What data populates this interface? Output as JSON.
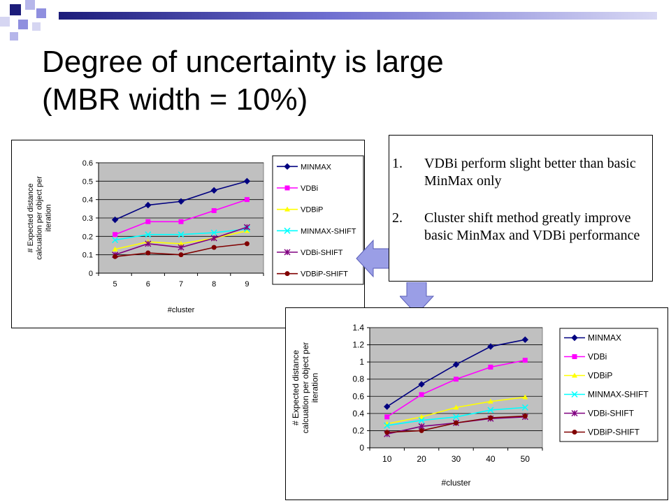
{
  "slide": {
    "title_line1": "Degree of uncertainty is large",
    "title_line2": "(MBR width = 10%)",
    "notes": [
      {
        "num": "1.",
        "text": "VDBi perform slight better than basic MinMax only"
      },
      {
        "num": "2.",
        "text": "Cluster shift method greatly improve basic MinMax and VDBi performance"
      }
    ]
  },
  "colors": {
    "accent_navy": "#1c1c7a",
    "accent_periwinkle": "#8f8fdf",
    "arrow_fill": "#9a9ee6"
  },
  "chart_data": [
    {
      "type": "line",
      "xlabel": "#cluster",
      "ylabel": "# Expected distance calcuation per object per iteration",
      "categories": [
        "5",
        "6",
        "7",
        "8",
        "9"
      ],
      "ylim": [
        0,
        0.6
      ],
      "yticks": [
        "0",
        "0.1",
        "0.2",
        "0.3",
        "0.4",
        "0.5",
        "0.6"
      ],
      "grid": true,
      "legend": "right",
      "series": [
        {
          "name": "MINMAX",
          "values": [
            0.29,
            0.37,
            0.39,
            0.45,
            0.5
          ],
          "color": "#000080",
          "marker": "diamond"
        },
        {
          "name": "VDBi",
          "values": [
            0.21,
            0.28,
            0.28,
            0.34,
            0.4
          ],
          "color": "#ff00ff",
          "marker": "square"
        },
        {
          "name": "VDBiP",
          "values": [
            0.13,
            0.17,
            0.16,
            0.19,
            0.23
          ],
          "color": "#ffff00",
          "marker": "triangle"
        },
        {
          "name": "MINMAX-SHIFT",
          "values": [
            0.18,
            0.21,
            0.21,
            0.22,
            0.24
          ],
          "color": "#00ffff",
          "marker": "x"
        },
        {
          "name": "VDBi-SHIFT",
          "values": [
            0.1,
            0.16,
            0.14,
            0.19,
            0.25
          ],
          "color": "#800080",
          "marker": "star"
        },
        {
          "name": "VDBiP-SHIFT",
          "values": [
            0.09,
            0.11,
            0.1,
            0.14,
            0.16
          ],
          "color": "#800000",
          "marker": "circle"
        }
      ]
    },
    {
      "type": "line",
      "xlabel": "#cluster",
      "ylabel": "# Expected distance calcuation per object per iteration",
      "categories": [
        "10",
        "20",
        "30",
        "40",
        "50"
      ],
      "ylim": [
        0,
        1.4
      ],
      "yticks": [
        "0",
        "0.2",
        "0.4",
        "0.6",
        "0.8",
        "1",
        "1.2",
        "1.4"
      ],
      "grid": true,
      "legend": "right",
      "series": [
        {
          "name": "MINMAX",
          "values": [
            0.48,
            0.74,
            0.97,
            1.18,
            1.26
          ],
          "color": "#000080",
          "marker": "diamond"
        },
        {
          "name": "VDBi",
          "values": [
            0.36,
            0.62,
            0.8,
            0.94,
            1.02
          ],
          "color": "#ff00ff",
          "marker": "square"
        },
        {
          "name": "VDBiP",
          "values": [
            0.28,
            0.36,
            0.47,
            0.54,
            0.59
          ],
          "color": "#ffff00",
          "marker": "triangle"
        },
        {
          "name": "MINMAX-SHIFT",
          "values": [
            0.26,
            0.32,
            0.36,
            0.44,
            0.47
          ],
          "color": "#00ffff",
          "marker": "x"
        },
        {
          "name": "VDBi-SHIFT",
          "values": [
            0.16,
            0.25,
            0.29,
            0.34,
            0.36
          ],
          "color": "#800080",
          "marker": "star"
        },
        {
          "name": "VDBiP-SHIFT",
          "values": [
            0.18,
            0.2,
            0.29,
            0.35,
            0.37
          ],
          "color": "#800000",
          "marker": "circle"
        }
      ]
    }
  ]
}
